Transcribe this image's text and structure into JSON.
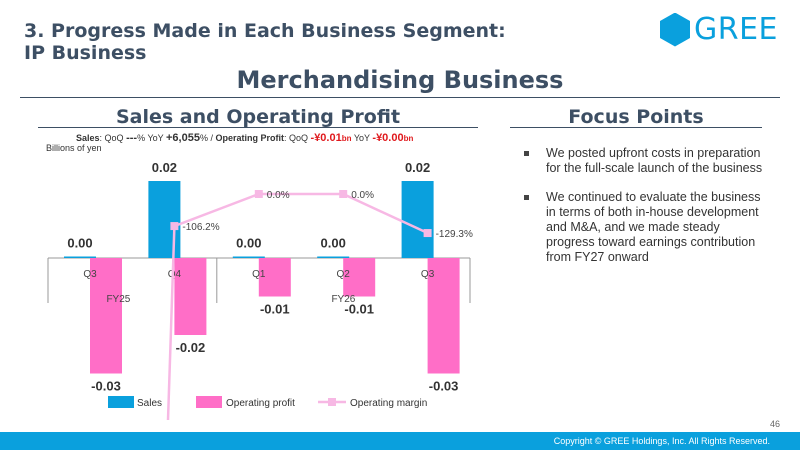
{
  "header": {
    "section_title": "3. Progress Made in Each Business Segment:\n    IP Business",
    "logo_text": "GREE",
    "logo_color": "#0aa0dd",
    "main_title": "Merchandising Business"
  },
  "left_panel": {
    "title": "Sales and Operating Profit",
    "kpi": {
      "sales_label": "Sales",
      "qoq_label": "QoQ",
      "sales_qoq": "---",
      "pct": "%",
      "yoy_label": "YoY",
      "sales_yoy": "+6,055",
      "op_label": "Operating Profit",
      "op_qoq": "-¥0.01",
      "op_yoy": "-¥0.00",
      "bn": "bn"
    },
    "unit": "Billions of yen"
  },
  "right_panel": {
    "title": "Focus Points",
    "points": [
      "We posted upfront costs in preparation for the full-scale launch of the business",
      "We continued to evaluate the business in terms of both in-house development and M&A, and we made steady progress toward earnings contribution from FY27 onward"
    ]
  },
  "chart_data": {
    "type": "bar",
    "categories": [
      "Q3",
      "Q4",
      "Q1",
      "Q2",
      "Q3"
    ],
    "fiscal_groups": [
      {
        "label": "FY25",
        "from": 0,
        "to": 1
      },
      {
        "label": "FY26",
        "from": 2,
        "to": 4
      }
    ],
    "series": [
      {
        "name": "Sales",
        "type": "bar",
        "color": "#0aa0dd",
        "values": [
          0.0,
          0.02,
          0.0,
          0.0,
          0.02
        ],
        "labels": [
          "0.00",
          "0.02",
          "0.00",
          "0.00",
          "0.02"
        ]
      },
      {
        "name": "Operating profit",
        "type": "bar",
        "color": "#ff6ec7",
        "values": [
          -0.03,
          -0.02,
          -0.01,
          -0.01,
          -0.03
        ],
        "labels": [
          "-0.03",
          "-0.02",
          "-0.01",
          "-0.01",
          "-0.03"
        ]
      },
      {
        "name": "Operating margin",
        "type": "line",
        "color": "#f7b8e4",
        "values": [
          null,
          -106.2,
          0.0,
          0.0,
          -129.3
        ],
        "labels": [
          "",
          "-106.2%",
          "0.0%",
          "0.0%",
          "-129.3%"
        ]
      }
    ],
    "legend_position": "bottom"
  },
  "footer": {
    "page_number": "46",
    "copyright": "Copyright © GREE Holdings, Inc. All Rights Reserved."
  }
}
